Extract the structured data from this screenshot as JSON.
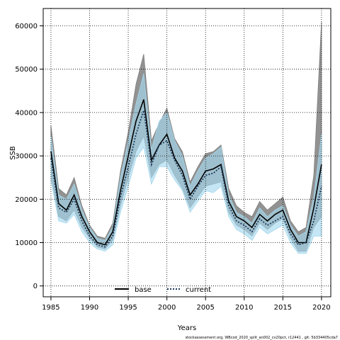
{
  "chart_data": {
    "type": "line",
    "xlabel": "Years",
    "ylabel": "SSB",
    "xlim": [
      1984.0,
      2021.2
    ],
    "ylim": [
      -2500,
      64000
    ],
    "xticks": [
      1985,
      1990,
      1995,
      2000,
      2005,
      2010,
      2015,
      2020
    ],
    "yticks": [
      0,
      10000,
      20000,
      30000,
      40000,
      50000,
      60000
    ],
    "grid": true,
    "legend_position": "bottom",
    "footer": "stockassessment.org, WBcod_2020_split_an002_cv20pct, r12441 , git: 5b334405cda7",
    "x": [
      1985,
      1986,
      1987,
      1988,
      1989,
      1990,
      1991,
      1992,
      1993,
      1994,
      1995,
      1996,
      1997,
      1998,
      1999,
      2000,
      2001,
      2002,
      2003,
      2004,
      2005,
      2006,
      2007,
      2008,
      2009,
      2010,
      2011,
      2012,
      2013,
      2014,
      2015,
      2016,
      2017,
      2018,
      2019,
      2020
    ],
    "series": [
      {
        "name": "base",
        "colors": {
          "line": "#000000",
          "band": "#7f7f7f"
        },
        "values": [
          31000,
          19000,
          17500,
          21000,
          16000,
          12500,
          10000,
          9500,
          12500,
          22000,
          30000,
          38000,
          43000,
          29000,
          32500,
          35000,
          29500,
          26500,
          21000,
          23500,
          26500,
          27000,
          28000,
          19500,
          16000,
          15000,
          13500,
          16500,
          15000,
          16500,
          17500,
          13000,
          10000,
          10000,
          18000,
          28000
        ],
        "lower": [
          25500,
          16000,
          15000,
          17500,
          13500,
          11000,
          9000,
          8500,
          10500,
          18500,
          25000,
          31000,
          34500,
          25000,
          28000,
          29000,
          25500,
          22500,
          18000,
          20500,
          23000,
          23500,
          24000,
          17000,
          14000,
          13000,
          11500,
          14500,
          13000,
          14500,
          15500,
          11000,
          8000,
          8000,
          13500,
          16000
        ],
        "upper": [
          37000,
          22500,
          21000,
          25000,
          18500,
          14000,
          11500,
          11000,
          14500,
          26500,
          35500,
          46500,
          53500,
          33500,
          37500,
          41000,
          34000,
          31000,
          24000,
          27500,
          30500,
          31000,
          32500,
          22500,
          18500,
          17000,
          16000,
          19500,
          17500,
          19000,
          20500,
          15000,
          12500,
          13500,
          25500,
          61000
        ]
      },
      {
        "name": "current",
        "colors": {
          "line": "#1f3a5a",
          "band": "#a6d8ee"
        },
        "values": [
          29500,
          18000,
          17000,
          20000,
          15000,
          11500,
          9500,
          9000,
          11500,
          20500,
          27500,
          35000,
          40500,
          28000,
          32500,
          33500,
          29000,
          25500,
          20000,
          23000,
          25500,
          26000,
          27500,
          18500,
          15000,
          14000,
          12500,
          15500,
          14000,
          15000,
          16000,
          12000,
          9500,
          10000,
          15000,
          23000
        ],
        "lower": [
          24500,
          15000,
          14500,
          16500,
          12500,
          10000,
          8500,
          8000,
          9500,
          17000,
          23000,
          29500,
          32000,
          23500,
          27500,
          27500,
          24500,
          22000,
          17000,
          19500,
          22000,
          21500,
          23000,
          16000,
          13000,
          12000,
          10500,
          13500,
          12000,
          13000,
          14000,
          10000,
          7500,
          7500,
          11500,
          11500
        ],
        "upper": [
          34500,
          21000,
          20000,
          23500,
          17500,
          13500,
          11000,
          10500,
          13500,
          25000,
          33500,
          42000,
          49000,
          31500,
          38000,
          40000,
          33500,
          30000,
          23000,
          26500,
          29500,
          30500,
          32000,
          21000,
          17000,
          16000,
          14500,
          18000,
          16000,
          17500,
          18500,
          14000,
          11500,
          12500,
          20500,
          35000
        ]
      }
    ]
  }
}
